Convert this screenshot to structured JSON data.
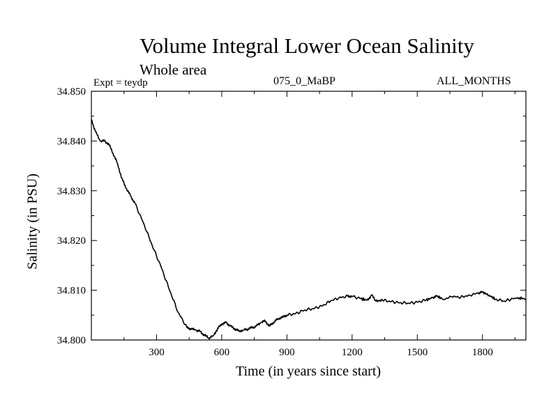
{
  "chart_data": {
    "type": "line",
    "title": "Volume Integral Lower Ocean Salinity",
    "subtitle": "Whole area",
    "expt_label": "Expt = teydp",
    "run_label": "075_0_MaBP",
    "period_label": "ALL_MONTHS",
    "xlabel": "Time (in years since start)",
    "ylabel": "Salinity (in PSU)",
    "xlim": [
      0,
      2000
    ],
    "ylim": [
      34.8,
      34.85
    ],
    "xticks": [
      300,
      600,
      900,
      1200,
      1500,
      1800
    ],
    "xtick_labels": [
      "300",
      "600",
      "900",
      "1200",
      "1500",
      "1800"
    ],
    "yticks": [
      34.8,
      34.81,
      34.82,
      34.83,
      34.84,
      34.85
    ],
    "ytick_labels": [
      "34.800",
      "34.810",
      "34.820",
      "34.830",
      "34.840",
      "34.850"
    ],
    "grid": false,
    "series": [
      {
        "name": "salinity",
        "x": [
          0,
          20,
          40,
          60,
          80,
          100,
          120,
          140,
          160,
          180,
          200,
          240,
          280,
          320,
          360,
          400,
          440,
          460,
          480,
          500,
          520,
          540,
          560,
          580,
          600,
          620,
          640,
          660,
          680,
          700,
          720,
          740,
          760,
          780,
          800,
          820,
          840,
          860,
          880,
          900,
          940,
          980,
          1020,
          1060,
          1100,
          1140,
          1180,
          1200,
          1240,
          1270,
          1290,
          1310,
          1340,
          1380,
          1420,
          1460,
          1500,
          1540,
          1570,
          1590,
          1620,
          1660,
          1700,
          1740,
          1780,
          1800,
          1830,
          1860,
          1900,
          1940,
          1970,
          2000
        ],
        "values": [
          34.8443,
          34.8418,
          34.84,
          34.84,
          34.8394,
          34.8375,
          34.8355,
          34.8325,
          34.8305,
          34.829,
          34.8275,
          34.8235,
          34.819,
          34.8148,
          34.81,
          34.8055,
          34.8025,
          34.8022,
          34.802,
          34.8017,
          34.801,
          34.8004,
          34.8008,
          34.8022,
          34.8032,
          34.8035,
          34.8028,
          34.8022,
          34.8018,
          34.802,
          34.8022,
          34.8025,
          34.8028,
          34.8035,
          34.8038,
          34.8028,
          34.8036,
          34.8043,
          34.8046,
          34.805,
          34.8053,
          34.806,
          34.8063,
          34.8068,
          34.8078,
          34.8085,
          34.8088,
          34.8088,
          34.8083,
          34.808,
          34.809,
          34.8078,
          34.808,
          34.8077,
          34.8075,
          34.8074,
          34.8076,
          34.808,
          34.8085,
          34.8088,
          34.8082,
          34.8087,
          34.8086,
          34.809,
          34.8094,
          34.8096,
          34.809,
          34.8082,
          34.8078,
          34.8083,
          34.8085,
          34.8082
        ]
      }
    ]
  }
}
